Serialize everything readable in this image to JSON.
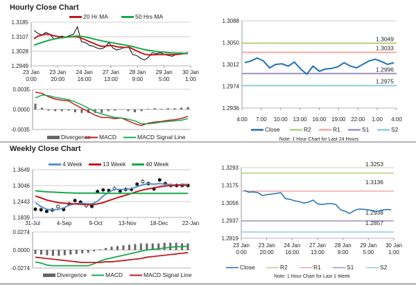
{
  "sections": {
    "hourly_title": "Hourly Close Chart",
    "weekly_title": "Weekly Close Chart"
  },
  "chart_data": [
    {
      "id": "hourly",
      "type": "line",
      "yticks": [
        "1.3185",
        "1.3107",
        "1.3028",
        "1.2949"
      ],
      "ylim": [
        1.2949,
        1.3185
      ],
      "xticks": [
        [
          "23 Jan",
          "0:00"
        ],
        [
          "23 Jan",
          "20:00"
        ],
        [
          "24 Jan",
          "16:00"
        ],
        [
          "27 Jan",
          "13:00"
        ],
        [
          "28 Jan",
          "9:00"
        ],
        [
          "29 Jan",
          "5:00"
        ],
        [
          "30 Jan",
          "1:00"
        ]
      ],
      "series": [
        {
          "name": "Close",
          "color": "#000000",
          "values": [
            1.314,
            1.3125,
            1.3115,
            1.313,
            1.312,
            1.3095,
            1.31,
            1.311,
            1.3105,
            1.3112,
            1.312,
            1.316,
            1.308,
            1.3075,
            1.306,
            1.3055,
            1.3045,
            1.304,
            1.305,
            1.3075,
            1.3045,
            1.3035,
            1.304,
            1.3048,
            1.305,
            1.301,
            1.3005,
            1.299,
            1.298,
            1.2995,
            1.302,
            1.3015,
            1.302,
            1.301,
            1.3005,
            1.3,
            1.301,
            1.3015,
            1.3018,
            1.302
          ]
        },
        {
          "name": "20 Hr MA",
          "color": "#c0191e",
          "values": [
            1.3095,
            1.311,
            1.3115,
            1.312,
            1.3118,
            1.3112,
            1.3108,
            1.3105,
            1.3104,
            1.3105,
            1.3107,
            1.3105,
            1.3098,
            1.309,
            1.308,
            1.3072,
            1.3062,
            1.3055,
            1.3055,
            1.3058,
            1.3058,
            1.3052,
            1.305,
            1.3048,
            1.305,
            1.304,
            1.303,
            1.302,
            1.3012,
            1.3008,
            1.3008,
            1.301,
            1.301,
            1.301,
            1.301,
            1.301,
            1.301,
            1.3012,
            1.3015,
            1.3015
          ]
        },
        {
          "name": "50 Hrs MA",
          "color": "#19a84a",
          "values": [
            1.306,
            1.3068,
            1.3075,
            1.3082,
            1.3088,
            1.3093,
            1.3097,
            1.31,
            1.3103,
            1.3106,
            1.3108,
            1.311,
            1.3108,
            1.3105,
            1.31,
            1.3095,
            1.309,
            1.3085,
            1.308,
            1.3077,
            1.3073,
            1.3069,
            1.3065,
            1.3062,
            1.3058,
            1.3053,
            1.3047,
            1.3042,
            1.3037,
            1.3033,
            1.303,
            1.3027,
            1.3024,
            1.3022,
            1.302,
            1.3019,
            1.3018,
            1.3018,
            1.3017,
            1.3016
          ]
        }
      ],
      "legend": [
        "20 Hr MA",
        "50 Hrs MA"
      ]
    },
    {
      "id": "hourly_macd",
      "type": "line",
      "yticks": [
        "0.0035",
        "0.0000",
        "-0.0035"
      ],
      "ylim": [
        -0.0035,
        0.0035
      ],
      "series": [
        {
          "name": "MACD",
          "color": "#c0191e",
          "values": [
            0.003,
            0.0028,
            0.0022,
            0.0018,
            0.0016,
            0.0015,
            0.0008,
            0.0002,
            -0.0004,
            -0.001,
            -0.0014,
            -0.0014,
            -0.0016,
            -0.0015,
            -0.002,
            -0.0025,
            -0.0028,
            -0.0024,
            -0.0022,
            -0.0021,
            -0.0019,
            -0.0018,
            -0.0016,
            -0.0012
          ]
        },
        {
          "name": "MACD Signal Line",
          "color": "#19a84a",
          "values": [
            0.002,
            0.0025,
            0.0024,
            0.0021,
            0.0019,
            0.0017,
            0.0013,
            0.0008,
            0.0002,
            -0.0004,
            -0.0008,
            -0.0011,
            -0.0014,
            -0.0015,
            -0.0017,
            -0.002,
            -0.0025,
            -0.0025,
            -0.0024,
            -0.0022,
            -0.0021,
            -0.002,
            -0.0019,
            -0.0016
          ]
        }
      ],
      "divergence": [
        0.001,
        0.0003,
        -0.0002,
        -0.0003,
        -0.0003,
        -0.0002,
        -0.0005,
        -0.0006,
        -0.0006,
        -0.0006,
        -0.0006,
        -0.0003,
        -0.0002,
        0,
        -0.0003,
        -0.0005,
        -0.0003,
        0.0001,
        0.0002,
        0.0001,
        0.0002,
        0.0002,
        0.0003,
        0.0004
      ],
      "legend": [
        "Divergence",
        "MACD",
        "MACD Signal Line"
      ]
    },
    {
      "id": "hourly24",
      "type": "line",
      "yticks": [
        "1.3088",
        "1.3050",
        "1.3012",
        "1.2974",
        "1.2936"
      ],
      "ylim": [
        1.2936,
        1.3088
      ],
      "xticks": [
        "4:00",
        "7:00",
        "10:00",
        "13:00",
        "16:00",
        "19:00",
        "22:00",
        "1:00",
        "4:00"
      ],
      "series": [
        {
          "name": "Close",
          "color": "#1f6fb2",
          "values": [
            1.3015,
            1.3018,
            1.3023,
            1.3018,
            1.3006,
            1.3012,
            1.3013,
            1.3009,
            1.3016,
            1.3004,
            1.2995,
            1.3009,
            1.3,
            1.3004,
            1.3005,
            1.3008,
            1.3015,
            1.3009,
            1.3006,
            1.3012,
            1.3018,
            1.3021,
            1.3017,
            1.3012,
            1.3015
          ]
        }
      ],
      "levels": [
        {
          "name": "R2",
          "value": 1.3049,
          "label": "1.3049",
          "color": "#b5cf7a"
        },
        {
          "name": "R1",
          "value": 1.3033,
          "label": "1.3033",
          "color": "#f0a8a5"
        },
        {
          "name": "S1",
          "value": 1.2996,
          "label": "1.2996",
          "color": "#a08fc4"
        },
        {
          "name": "S2",
          "value": 1.2975,
          "label": "1.2975",
          "color": "#8fcbdc"
        }
      ],
      "legend": [
        "Close",
        "R2",
        "R1",
        "S1",
        "S2"
      ],
      "note": "Note: 1 Hour Chart for Last 24 Hours"
    },
    {
      "id": "weekly",
      "type": "line",
      "yticks": [
        "1.3649",
        "1.3046",
        "1.2443",
        "1.1839"
      ],
      "ylim": [
        1.1839,
        1.3649
      ],
      "xticks": [
        "31-Jul",
        "4-Sep",
        "9-Oct",
        "13-Nov",
        "18-Dec",
        "22-Jan"
      ],
      "candles_close": [
        1.215,
        1.213,
        1.207,
        1.212,
        1.225,
        1.214,
        1.235,
        1.248,
        1.242,
        1.228,
        1.226,
        1.282,
        1.288,
        1.286,
        1.293,
        1.284,
        1.29,
        1.29,
        1.31,
        1.32,
        1.312,
        1.292,
        1.326,
        1.312,
        1.305,
        1.305,
        1.305,
        1.305
      ],
      "series": [
        {
          "name": "4 Week",
          "color": "#5b8fc9",
          "values": [
            1.24,
            1.225,
            1.215,
            1.212,
            1.214,
            1.22,
            1.23,
            1.236,
            1.238,
            1.236,
            1.235,
            1.245,
            1.265,
            1.28,
            1.29,
            1.29,
            1.29,
            1.293,
            1.3,
            1.308,
            1.312,
            1.31,
            1.312,
            1.31,
            1.308,
            1.306,
            1.31,
            1.308
          ]
        },
        {
          "name": "13 Week",
          "color": "#c0191e",
          "values": [
            1.265,
            1.258,
            1.25,
            1.245,
            1.24,
            1.238,
            1.236,
            1.235,
            1.234,
            1.232,
            1.232,
            1.235,
            1.24,
            1.248,
            1.255,
            1.262,
            1.268,
            1.275,
            1.282,
            1.288,
            1.292,
            1.296,
            1.3,
            1.303,
            1.305,
            1.306,
            1.306,
            1.306
          ]
        },
        {
          "name": "40 Week",
          "color": "#19a84a",
          "values": [
            1.285,
            1.283,
            1.281,
            1.28,
            1.279,
            1.278,
            1.277,
            1.276,
            1.276,
            1.276,
            1.276,
            1.276,
            1.276,
            1.275,
            1.275,
            1.275,
            1.275,
            1.275,
            1.275,
            1.275,
            1.275,
            1.275,
            1.275,
            1.275,
            1.275,
            1.275,
            1.275,
            1.275
          ]
        }
      ],
      "legend": [
        "4 Week",
        "13 Week",
        "40 Week"
      ]
    },
    {
      "id": "weekly_macd",
      "type": "line",
      "yticks": [
        "0.0274",
        "0.0000",
        "-0.0274"
      ],
      "ylim": [
        -0.0274,
        0.0274
      ],
      "series": [
        {
          "name": "MACD",
          "color": "#19a84a",
          "values": [
            -0.018,
            -0.02,
            -0.023,
            -0.024,
            -0.024,
            -0.024,
            -0.024,
            -0.024,
            -0.024,
            -0.024,
            -0.021,
            -0.017,
            -0.014,
            -0.012,
            -0.01,
            -0.008,
            -0.006,
            -0.004,
            -0.002,
            0.0,
            0.001,
            0.002,
            0.003,
            0.004,
            0.005,
            0.005,
            0.006
          ]
        },
        {
          "name": "MACD Signal Line",
          "color": "#c0191e",
          "values": [
            -0.011,
            -0.012,
            -0.013,
            -0.014,
            -0.015,
            -0.016,
            -0.017,
            -0.018,
            -0.019,
            -0.019,
            -0.019,
            -0.019,
            -0.018,
            -0.018,
            -0.017,
            -0.016,
            -0.015,
            -0.014,
            -0.013,
            -0.011,
            -0.01,
            -0.009,
            -0.008,
            -0.007,
            -0.006,
            -0.005,
            -0.004
          ]
        }
      ],
      "divergence": [
        -0.006,
        -0.007,
        -0.008,
        -0.009,
        -0.009,
        -0.008,
        -0.007,
        -0.006,
        -0.005,
        -0.004,
        -0.002,
        0.001,
        0.003,
        0.005,
        0.006,
        0.007,
        0.008,
        0.009,
        0.01,
        0.01,
        0.01,
        0.01,
        0.011,
        0.011,
        0.011,
        0.01,
        0.01
      ],
      "legend": [
        "Divergence",
        "MACD",
        "MACD Signal Line"
      ]
    },
    {
      "id": "week1",
      "type": "line",
      "yticks": [
        "1.3293",
        "1.3175",
        "1.3056",
        "1.2937",
        "1.2819"
      ],
      "ylim": [
        1.2819,
        1.3293
      ],
      "xticks": [
        [
          "23 Jan",
          "0:00"
        ],
        [
          "23 Jan",
          "20:00"
        ],
        [
          "24 Jan",
          "16:00"
        ],
        [
          "27 Jan",
          "13:00"
        ],
        [
          "28 Jan",
          "9:00"
        ],
        [
          "29 Jan",
          "5:00"
        ],
        [
          "30 Jan",
          "1:00"
        ]
      ],
      "series": [
        {
          "name": "Close",
          "color": "#1f6fb2",
          "values": [
            1.314,
            1.3128,
            1.313,
            1.3125,
            1.3105,
            1.3112,
            1.3115,
            1.312,
            1.3125,
            1.3085,
            1.308,
            1.307,
            1.3065,
            1.3055,
            1.306,
            1.3075,
            1.305,
            1.3045,
            1.305,
            1.3052,
            1.3045,
            1.301,
            1.3,
            1.2985,
            1.3005,
            1.3015,
            1.3013,
            1.301,
            1.3005,
            1.3,
            1.3008,
            1.3012,
            1.301
          ]
        }
      ],
      "levels": [
        {
          "name": "R2",
          "value": 1.3253,
          "label": "1.3253",
          "color": "#b5cf7a"
        },
        {
          "name": "R1",
          "value": 1.3136,
          "label": "1.3136",
          "color": "#f0a8a5"
        },
        {
          "name": "S1",
          "value": 1.2938,
          "label": "1.2938",
          "color": "#a08fc4"
        },
        {
          "name": "S2",
          "value": 1.2857,
          "label": "1.2857",
          "color": "#8fcbdc"
        }
      ],
      "legend": [
        "Close",
        "R2",
        "R1",
        "S1",
        "S2"
      ],
      "note": "Note: 1 Hour Chart for Last 1 Week"
    }
  ]
}
